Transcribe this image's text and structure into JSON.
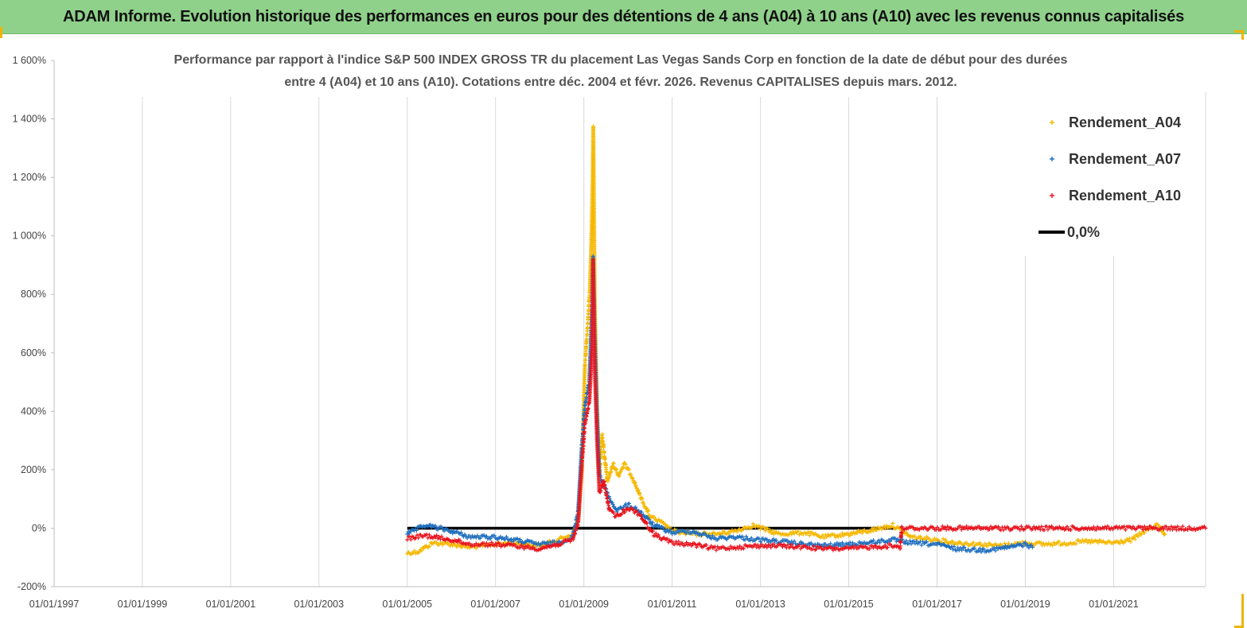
{
  "header": {
    "title": "ADAM Informe. Evolution historique des performances en euros pour des détentions de 4 ans (A04) à 10 ans (A10) avec les revenus connus capitalisés"
  },
  "chart_data": {
    "type": "scatter",
    "title_lines": [
      "Performance par rapport à l'indice S&P 500 INDEX GROSS TR  du placement Las Vegas Sands Corp en fonction de la date de début pour des durées",
      "entre 4 (A04) et 10 ans (A10). Cotations entre déc. 2004 et févr. 2026. Revenus CAPITALISES depuis mars. 2012."
    ],
    "xlabel": "",
    "ylabel": "",
    "x_ticks": [
      "01/01/1997",
      "01/01/1999",
      "01/01/2001",
      "01/01/2003",
      "01/01/2005",
      "01/01/2007",
      "01/01/2009",
      "01/01/2011",
      "01/01/2013",
      "01/01/2015",
      "01/01/2017",
      "01/01/2019",
      "01/01/2021"
    ],
    "xlim": [
      "1997-01-01",
      "2023-02-01"
    ],
    "y_ticks": [
      "-200%",
      "0%",
      "200%",
      "400%",
      "600%",
      "800%",
      "1 000%",
      "1 200%",
      "1 400%",
      "1 600%"
    ],
    "ylim": [
      -200,
      1600
    ],
    "legend_position": "top-right",
    "series": [
      {
        "name": "Rendement_A04",
        "color": "#f5b800",
        "marker": "+",
        "points": [
          [
            "2005-01-01",
            -85
          ],
          [
            "2005-04-01",
            -80
          ],
          [
            "2005-08-01",
            -50
          ],
          [
            "2006-01-01",
            -55
          ],
          [
            "2006-06-01",
            -65
          ],
          [
            "2007-01-01",
            -55
          ],
          [
            "2007-06-01",
            -50
          ],
          [
            "2008-01-01",
            -60
          ],
          [
            "2008-06-01",
            -40
          ],
          [
            "2008-10-01",
            -20
          ],
          [
            "2008-11-15",
            30
          ],
          [
            "2008-12-15",
            200
          ],
          [
            "2009-01-10",
            560
          ],
          [
            "2009-02-01",
            690
          ],
          [
            "2009-02-20",
            820
          ],
          [
            "2009-03-05",
            1000
          ],
          [
            "2009-03-15",
            1200
          ],
          [
            "2009-03-20",
            1375
          ],
          [
            "2009-04-01",
            780
          ],
          [
            "2009-04-20",
            420
          ],
          [
            "2009-05-10",
            180
          ],
          [
            "2009-06-01",
            320
          ],
          [
            "2009-07-15",
            160
          ],
          [
            "2009-09-01",
            220
          ],
          [
            "2009-10-15",
            180
          ],
          [
            "2009-12-01",
            220
          ],
          [
            "2010-02-01",
            180
          ],
          [
            "2010-04-01",
            120
          ],
          [
            "2010-07-01",
            40
          ],
          [
            "2010-10-01",
            20
          ],
          [
            "2011-01-01",
            -10
          ],
          [
            "2011-06-01",
            -20
          ],
          [
            "2012-01-01",
            -20
          ],
          [
            "2012-06-01",
            -10
          ],
          [
            "2012-11-01",
            10
          ],
          [
            "2013-06-01",
            -20
          ],
          [
            "2014-01-01",
            -15
          ],
          [
            "2014-06-01",
            -30
          ],
          [
            "2015-01-01",
            -20
          ],
          [
            "2015-06-01",
            -10
          ],
          [
            "2016-01-01",
            10
          ],
          [
            "2016-06-01",
            -30
          ],
          [
            "2017-01-01",
            -40
          ],
          [
            "2017-06-01",
            -50
          ],
          [
            "2018-01-01",
            -55
          ],
          [
            "2018-06-01",
            -60
          ],
          [
            "2019-01-01",
            -50
          ],
          [
            "2019-06-01",
            -55
          ],
          [
            "2020-01-01",
            -50
          ],
          [
            "2020-06-01",
            -45
          ],
          [
            "2021-01-01",
            -50
          ],
          [
            "2021-06-01",
            -40
          ],
          [
            "2021-10-01",
            -5
          ],
          [
            "2022-01-01",
            10
          ],
          [
            "2022-03-01",
            -20
          ]
        ]
      },
      {
        "name": "Rendement_A07",
        "color": "#1f6fbf",
        "marker": "+",
        "points": [
          [
            "2005-01-01",
            -20
          ],
          [
            "2005-06-01",
            10
          ],
          [
            "2006-01-01",
            -10
          ],
          [
            "2006-06-01",
            -30
          ],
          [
            "2007-01-01",
            -30
          ],
          [
            "2007-06-01",
            -40
          ],
          [
            "2008-01-01",
            -55
          ],
          [
            "2008-06-01",
            -50
          ],
          [
            "2008-10-01",
            -30
          ],
          [
            "2008-11-15",
            60
          ],
          [
            "2008-12-15",
            280
          ],
          [
            "2009-01-10",
            420
          ],
          [
            "2009-02-15",
            500
          ],
          [
            "2009-03-10",
            750
          ],
          [
            "2009-03-18",
            930
          ],
          [
            "2009-04-01",
            650
          ],
          [
            "2009-04-20",
            380
          ],
          [
            "2009-05-10",
            180
          ],
          [
            "2009-06-15",
            150
          ],
          [
            "2009-08-01",
            100
          ],
          [
            "2009-10-01",
            60
          ],
          [
            "2010-01-01",
            80
          ],
          [
            "2010-04-01",
            60
          ],
          [
            "2010-08-01",
            10
          ],
          [
            "2011-01-01",
            -15
          ],
          [
            "2011-06-01",
            -10
          ],
          [
            "2012-01-01",
            -35
          ],
          [
            "2012-06-01",
            -30
          ],
          [
            "2013-01-01",
            -40
          ],
          [
            "2013-06-01",
            -45
          ],
          [
            "2014-01-01",
            -55
          ],
          [
            "2014-06-01",
            -60
          ],
          [
            "2015-01-01",
            -55
          ],
          [
            "2015-06-01",
            -50
          ],
          [
            "2016-01-01",
            -40
          ],
          [
            "2016-06-01",
            -50
          ],
          [
            "2017-01-01",
            -55
          ],
          [
            "2017-06-01",
            -70
          ],
          [
            "2018-01-01",
            -75
          ],
          [
            "2018-06-01",
            -70
          ],
          [
            "2019-01-01",
            -55
          ],
          [
            "2019-03-01",
            -65
          ]
        ]
      },
      {
        "name": "Rendement_A10",
        "color": "#e8141e",
        "marker": "+",
        "points": [
          [
            "2005-01-01",
            -35
          ],
          [
            "2005-06-01",
            -25
          ],
          [
            "2006-01-01",
            -40
          ],
          [
            "2006-06-01",
            -55
          ],
          [
            "2007-01-01",
            -55
          ],
          [
            "2007-06-01",
            -60
          ],
          [
            "2008-01-01",
            -70
          ],
          [
            "2008-06-01",
            -55
          ],
          [
            "2008-10-01",
            -40
          ],
          [
            "2008-11-15",
            20
          ],
          [
            "2008-12-15",
            220
          ],
          [
            "2009-01-10",
            360
          ],
          [
            "2009-02-15",
            430
          ],
          [
            "2009-03-10",
            620
          ],
          [
            "2009-03-18",
            920
          ],
          [
            "2009-04-01",
            550
          ],
          [
            "2009-04-20",
            300
          ],
          [
            "2009-05-10",
            120
          ],
          [
            "2009-06-15",
            160
          ],
          [
            "2009-08-01",
            60
          ],
          [
            "2009-10-01",
            40
          ],
          [
            "2010-01-01",
            70
          ],
          [
            "2010-04-01",
            50
          ],
          [
            "2010-08-01",
            -20
          ],
          [
            "2011-01-01",
            -50
          ],
          [
            "2011-06-01",
            -55
          ],
          [
            "2012-01-01",
            -70
          ],
          [
            "2012-06-01",
            -65
          ],
          [
            "2013-01-01",
            -60
          ],
          [
            "2013-06-01",
            -60
          ],
          [
            "2014-01-01",
            -65
          ],
          [
            "2014-06-01",
            -70
          ],
          [
            "2015-01-01",
            -70
          ],
          [
            "2015-06-01",
            -65
          ],
          [
            "2016-01-01",
            -60
          ],
          [
            "2016-03-01",
            -65
          ],
          [
            "2016-03-15",
            0
          ],
          [
            "2023-02-01",
            0
          ]
        ]
      },
      {
        "name": "0,0%",
        "color": "#000000",
        "marker": "line",
        "points": [
          [
            "2005-01-01",
            0
          ],
          [
            "2016-02-01",
            0
          ]
        ]
      }
    ]
  }
}
